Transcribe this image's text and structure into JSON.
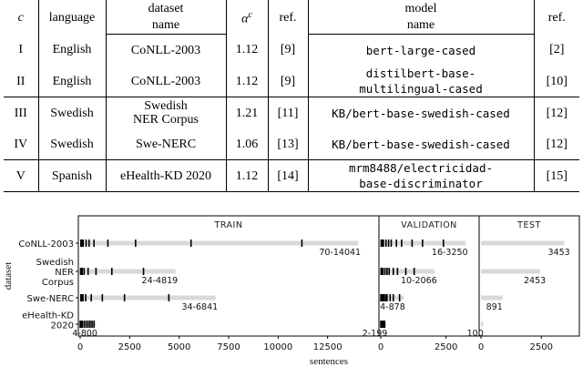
{
  "table": {
    "header_row1": {
      "c": "c",
      "language": "language",
      "dataset": "dataset",
      "alpha_base": "α",
      "alpha_sup": "c",
      "ref": "ref.",
      "model": "model",
      "ref2": "ref."
    },
    "header_row2": {
      "dataset_name": "name",
      "model_name": "name"
    },
    "rows": [
      {
        "c": "I",
        "language": "English",
        "dataset": [
          "CoNLL-2003"
        ],
        "alpha": "1.12",
        "ref": "[9]",
        "model": [
          "bert-large-cased"
        ],
        "model_ref": "[2]"
      },
      {
        "c": "II",
        "language": "English",
        "dataset": [
          "CoNLL-2003"
        ],
        "alpha": "1.12",
        "ref": "[9]",
        "model": [
          "distilbert-base-",
          "multilingual-cased"
        ],
        "model_ref": "[10]"
      },
      {
        "c": "III",
        "language": "Swedish",
        "dataset": [
          "Swedish",
          "NER Corpus"
        ],
        "alpha": "1.21",
        "ref": "[11]",
        "model": [
          "KB/bert-base-swedish-cased"
        ],
        "model_ref": "[12]"
      },
      {
        "c": "IV",
        "language": "Swedish",
        "dataset": [
          "Swe-NERC"
        ],
        "alpha": "1.06",
        "ref": "[13]",
        "model": [
          "KB/bert-base-swedish-cased"
        ],
        "model_ref": "[12]"
      },
      {
        "c": "V",
        "language": "Spanish",
        "dataset": [
          "eHealth-KD 2020"
        ],
        "alpha": "1.12",
        "ref": "[14]",
        "model": [
          "mrm8488/electricidad-",
          "base-discriminator"
        ],
        "model_ref": "[15]"
      }
    ]
  },
  "chart_data": {
    "type": "bar",
    "ylabel": "dataset",
    "xlabel": "sentences",
    "categories": [
      "CoNLL-2003",
      "Swedish NER Corpus",
      "Swe-NERC",
      "eHealth-KD 2020"
    ],
    "category_labels": [
      [
        "CoNLL-2003"
      ],
      [
        "Swedish",
        "NER",
        "Corpus"
      ],
      [
        "Swe-NERC"
      ],
      [
        "eHealth-KD",
        "2020"
      ]
    ],
    "panels": [
      {
        "title": "TRAIN",
        "xlim": [
          0,
          15000
        ],
        "ticks": [
          0,
          2500,
          5000,
          7500,
          10000,
          12500
        ],
        "bars": [
          {
            "total": 14041,
            "label": "70-14041",
            "marks": [
              70,
              150,
              300,
              450,
              700,
              1400,
              2800,
              5600,
              11200
            ]
          },
          {
            "total": 4819,
            "label": "24-4819",
            "marks": [
              24,
              50,
              100,
              200,
              400,
              800,
              1600,
              3200
            ]
          },
          {
            "total": 6841,
            "label": "34-6841",
            "marks": [
              34,
              70,
              140,
              280,
              560,
              1120,
              2240,
              4480
            ]
          },
          {
            "total": 800,
            "label": "4-800",
            "marks": [
              4,
              100,
              200,
              300,
              400,
              500,
              600,
              700
            ]
          }
        ]
      },
      {
        "title": "VALIDATION",
        "xlim": [
          0,
          3700
        ],
        "ticks": [
          0,
          2500
        ],
        "bars": [
          {
            "total": 3250,
            "label": "16-3250",
            "marks": [
              16,
              100,
              200,
              300,
              400,
              600,
              800,
              1200,
              1600,
              2400
            ]
          },
          {
            "total": 2066,
            "label": "10-2066",
            "marks": [
              10,
              80,
              160,
              240,
              320,
              480,
              640,
              960,
              1280
            ]
          },
          {
            "total": 878,
            "label": "4-878",
            "marks": [
              4,
              60,
              120,
              180,
              240,
              360,
              480,
              720
            ]
          },
          {
            "total": 199,
            "label": "2-199",
            "marks": [
              2,
              30,
              60,
              90,
              120,
              150
            ]
          }
        ]
      },
      {
        "title": "TEST",
        "xlim": [
          0,
          4000
        ],
        "ticks": [
          0,
          2500
        ],
        "bars": [
          {
            "total": 3453,
            "label": "3453",
            "marks": []
          },
          {
            "total": 2453,
            "label": "2453",
            "marks": []
          },
          {
            "total": 891,
            "label": "891",
            "marks": []
          },
          {
            "total": 100,
            "label": "100",
            "marks": []
          }
        ]
      }
    ],
    "colors": {
      "bar": "#d9d9d9",
      "mark": "#000000",
      "axis": "#000000"
    }
  }
}
